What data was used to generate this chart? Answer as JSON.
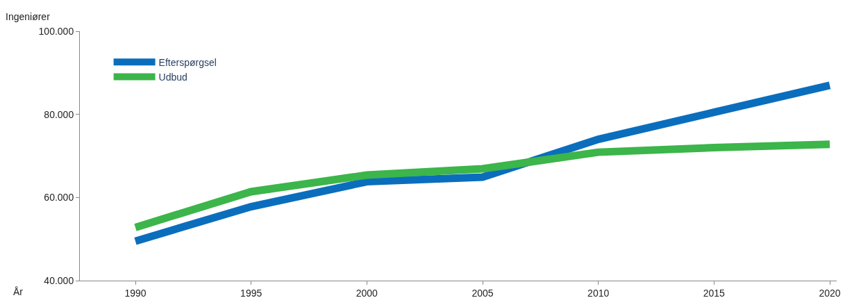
{
  "chart_data": {
    "type": "line",
    "ylabel": "Ingeniører",
    "xlabel": "År",
    "x": [
      1990,
      1995,
      2000,
      2005,
      2010,
      2015,
      2020
    ],
    "series": [
      {
        "name": "Efterspørgsel",
        "color": "#0a6ebd",
        "values": [
          49500,
          57800,
          63800,
          64900,
          74000,
          80500,
          87000
        ]
      },
      {
        "name": "Udbud",
        "color": "#3cb54a",
        "values": [
          52800,
          61400,
          65400,
          66900,
          70900,
          72000,
          72800
        ]
      }
    ],
    "xlim": [
      1987.6,
      2020.3
    ],
    "ylim": [
      40000,
      100000
    ],
    "xticks": [
      1990,
      1995,
      2000,
      2005,
      2010,
      2015,
      2020
    ],
    "yticks": [
      {
        "value": 40000,
        "label": "40.000"
      },
      {
        "value": 60000,
        "label": "60.000"
      },
      {
        "value": 80000,
        "label": "80.000"
      },
      {
        "value": 100000,
        "label": "100.000"
      }
    ],
    "legend": "top left",
    "marker": "none",
    "line_style": "solid"
  }
}
